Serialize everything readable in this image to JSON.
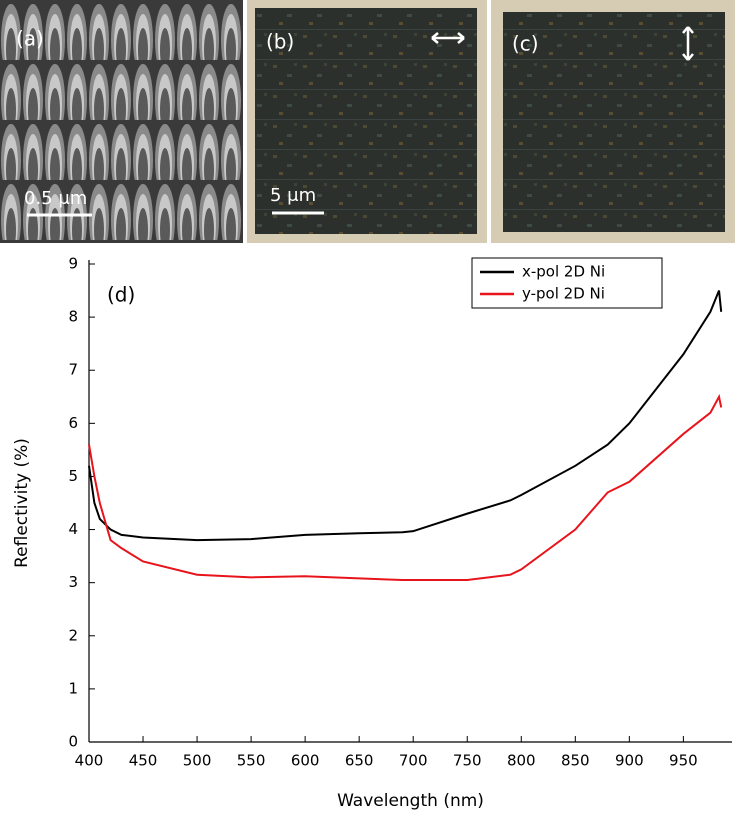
{
  "panels": [
    {
      "label": "(a)",
      "scale_bar": "0.5 μm"
    },
    {
      "label": "(b)",
      "scale_bar": "5 μm"
    },
    {
      "label": "(c)"
    }
  ],
  "chart_data": {
    "type": "line",
    "annotation": "(d)",
    "x_label": "Wavelength (nm)",
    "y_label": "Reflectivity (%)",
    "x": [
      400,
      405,
      410,
      420,
      430,
      450,
      500,
      550,
      600,
      650,
      690,
      700,
      750,
      790,
      800,
      850,
      880,
      900,
      950,
      975,
      983,
      985
    ],
    "series": [
      {
        "name": "x-pol 2D Ni",
        "color": "#000000",
        "values": [
          5.2,
          4.5,
          4.2,
          4.0,
          3.9,
          3.85,
          3.8,
          3.82,
          3.9,
          3.93,
          3.95,
          3.97,
          4.3,
          4.55,
          4.65,
          5.2,
          5.6,
          6.0,
          7.3,
          8.1,
          8.5,
          8.1
        ]
      },
      {
        "name": "y-pol 2D Ni",
        "color": "#e8141c",
        "values": [
          5.6,
          5.0,
          4.5,
          3.8,
          3.65,
          3.4,
          3.15,
          3.1,
          3.12,
          3.08,
          3.05,
          3.05,
          3.05,
          3.15,
          3.25,
          4.0,
          4.7,
          4.9,
          5.8,
          6.2,
          6.5,
          6.3
        ]
      }
    ],
    "xlim": [
      400,
      995
    ],
    "ylim": [
      0,
      9
    ],
    "xticks": [
      400,
      450,
      500,
      550,
      600,
      650,
      700,
      750,
      800,
      850,
      900,
      950
    ],
    "yticks": [
      0,
      1,
      2,
      3,
      4,
      5,
      6,
      7,
      8,
      9
    ],
    "legend": "upper right"
  }
}
